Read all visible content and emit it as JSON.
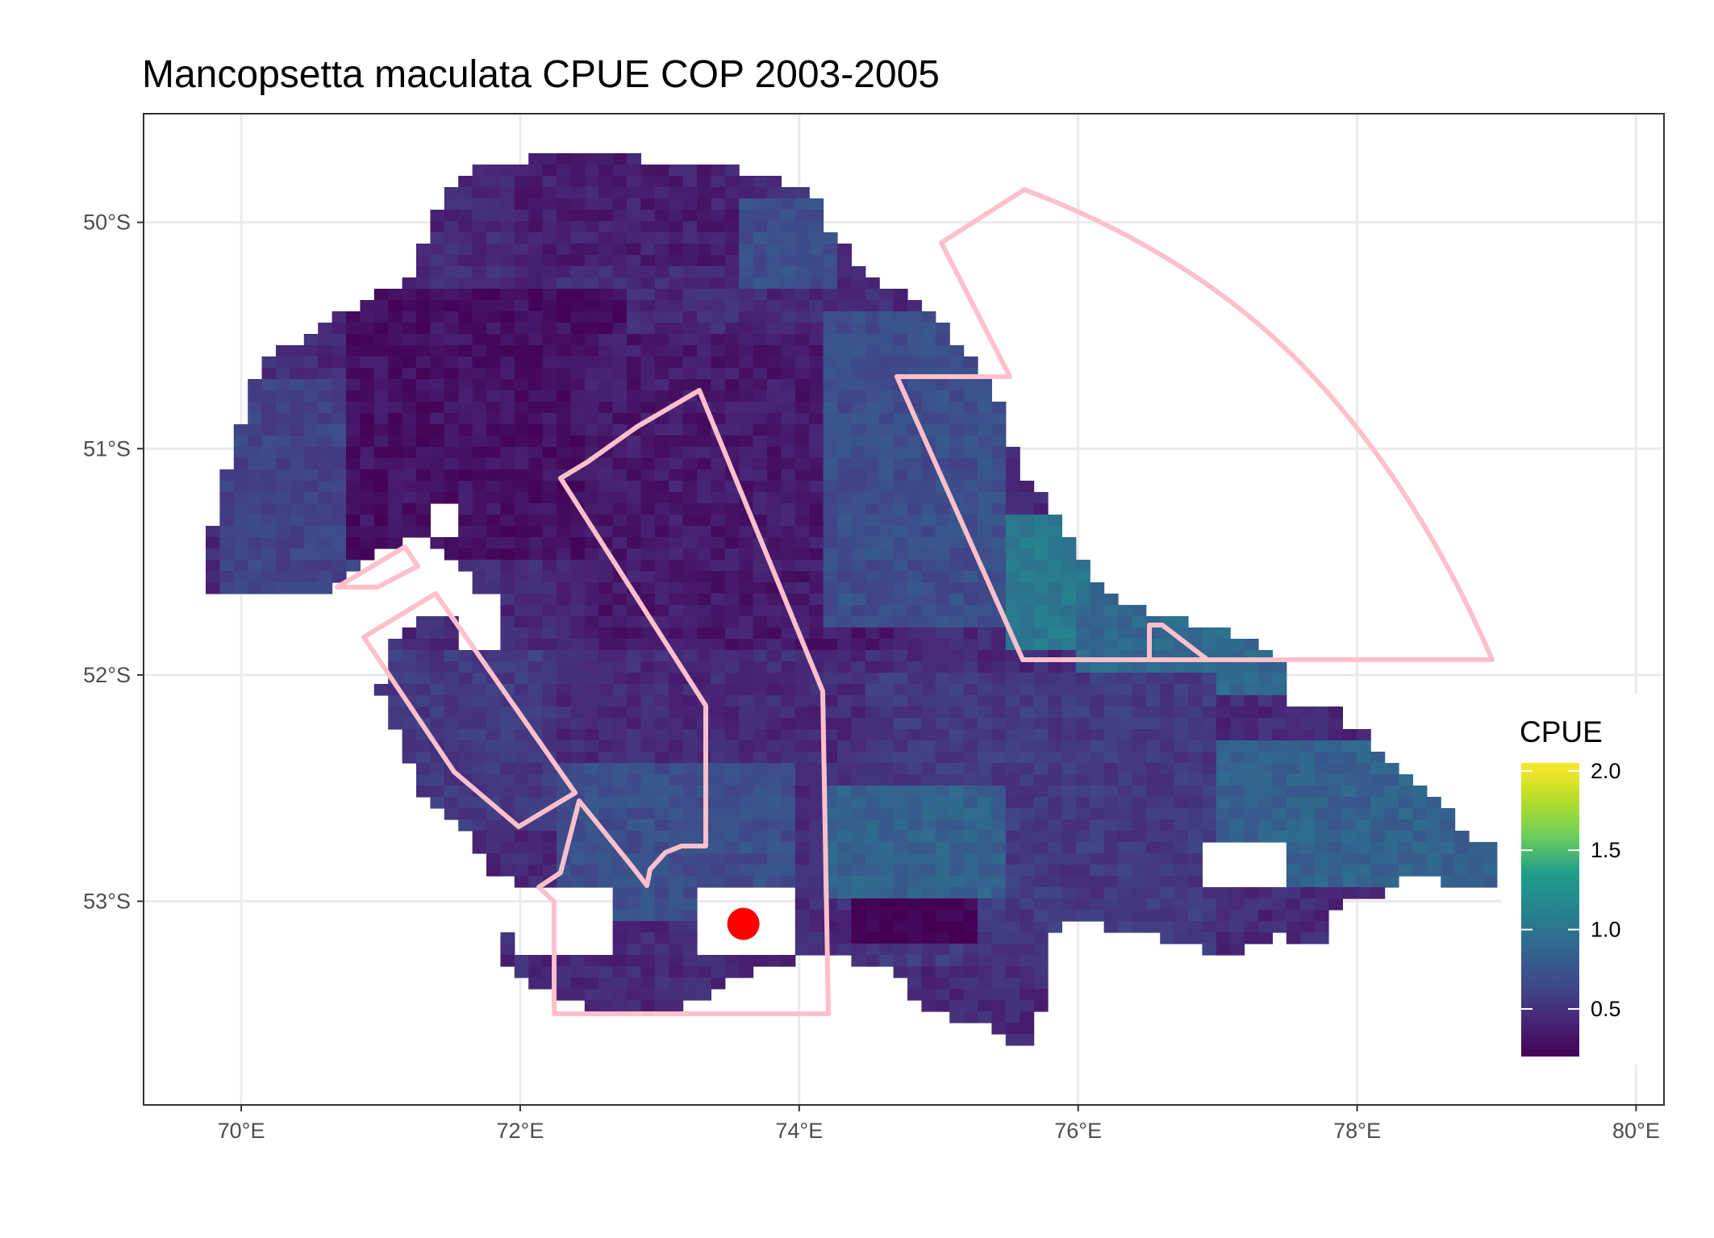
{
  "title": "Mancopsetta maculata  CPUE COP 2003-2005",
  "chart_data": {
    "type": "heatmap",
    "title": "Mancopsetta maculata  CPUE COP 2003-2005",
    "xlabel": "",
    "ylabel": "",
    "xlim": [
      69.3,
      80.2
    ],
    "ylim": [
      -53.9,
      -49.52
    ],
    "grid": true,
    "x_ticks": [
      {
        "value": 70,
        "label": "70°E"
      },
      {
        "value": 72,
        "label": "72°E"
      },
      {
        "value": 74,
        "label": "74°E"
      },
      {
        "value": 76,
        "label": "76°E"
      },
      {
        "value": 78,
        "label": "78°E"
      },
      {
        "value": 80,
        "label": "80°E"
      }
    ],
    "y_ticks": [
      {
        "value": -50,
        "label": "50°S"
      },
      {
        "value": -51,
        "label": "51°S"
      },
      {
        "value": -52,
        "label": "52°S"
      },
      {
        "value": -53,
        "label": "53°S"
      }
    ],
    "legend": {
      "title": "CPUE",
      "placement": "right",
      "colorscale": "viridis",
      "range": [
        0.2,
        2.05
      ],
      "ticks": [
        {
          "value": 0.5,
          "label": "0.5"
        },
        {
          "value": 1.0,
          "label": "1.0"
        },
        {
          "value": 1.5,
          "label": "1.5"
        },
        {
          "value": 2.0,
          "label": "2.0"
        }
      ]
    },
    "grid_cell": {
      "dlon": 0.1,
      "dlat": 0.05
    },
    "colors": {
      "outline": "#ffc0cb",
      "point": "#ff0000",
      "grid": "#ebebeb",
      "panel_border": "#333333"
    },
    "point": {
      "lon": 73.6,
      "lat": -53.1
    },
    "cpue_regions": [
      {
        "lon": [
          69.8,
          71.0
        ],
        "lat": [
          -51.65,
          -50.7
        ],
        "cpue": 0.62
      },
      {
        "lon": [
          70.8,
          72.8
        ],
        "lat": [
          -51.5,
          -50.3
        ],
        "cpue": 0.3
      },
      {
        "lon": [
          72.0,
          73.6
        ],
        "lat": [
          -50.2,
          -49.7
        ],
        "cpue": 0.38
      },
      {
        "lon": [
          73.6,
          74.3
        ],
        "lat": [
          -50.3,
          -49.9
        ],
        "cpue": 0.7
      },
      {
        "lon": [
          72.5,
          74.8
        ],
        "lat": [
          -51.9,
          -50.5
        ],
        "cpue": 0.35
      },
      {
        "lon": [
          74.2,
          75.5
        ],
        "lat": [
          -51.8,
          -50.4
        ],
        "cpue": 0.7
      },
      {
        "lon": [
          75.5,
          76.4
        ],
        "lat": [
          -51.9,
          -51.3
        ],
        "cpue": 1.05
      },
      {
        "lon": [
          76.0,
          77.5
        ],
        "lat": [
          -52.1,
          -51.6
        ],
        "cpue": 0.9
      },
      {
        "lon": [
          74.5,
          77.0
        ],
        "lat": [
          -53.3,
          -52.0
        ],
        "cpue": 0.55
      },
      {
        "lon": [
          72.3,
          74.0
        ],
        "lat": [
          -53.1,
          -52.4
        ],
        "cpue": 0.7
      },
      {
        "lon": [
          74.2,
          75.5
        ],
        "lat": [
          -53.0,
          -52.5
        ],
        "cpue": 0.85
      },
      {
        "lon": [
          71.1,
          72.3
        ],
        "lat": [
          -52.7,
          -51.9
        ],
        "cpue": 0.55
      },
      {
        "lon": [
          77.0,
          79.0
        ],
        "lat": [
          -52.95,
          -52.3
        ],
        "cpue": 0.85
      },
      {
        "lon": [
          74.4,
          75.3
        ],
        "lat": [
          -53.2,
          -53.0
        ],
        "cpue": 0.2
      }
    ]
  }
}
